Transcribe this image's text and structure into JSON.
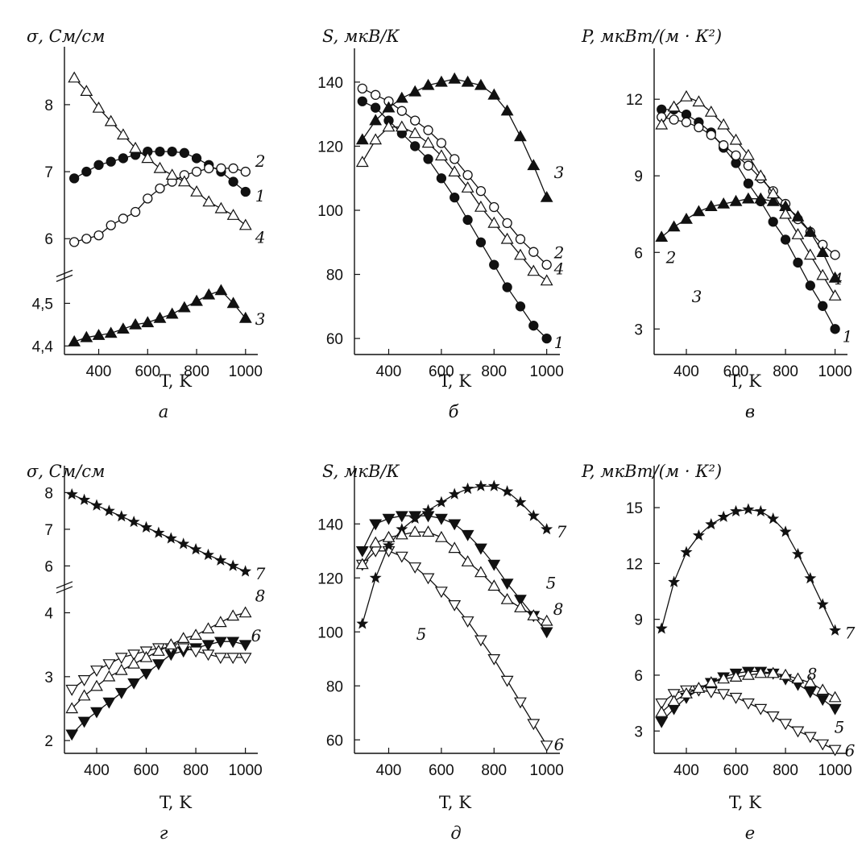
{
  "chart_data": [
    {
      "panel": "а",
      "type": "line",
      "ylabel": "σ, См/см",
      "xlabel": "T, K",
      "xticks": [
        400,
        600,
        800,
        1000
      ],
      "xlim": [
        260,
        1050
      ],
      "yticks": [
        4.4,
        4.5,
        6,
        7,
        8
      ],
      "ytick_labels": [
        "4,4",
        "4,5",
        "6",
        "7",
        "8"
      ],
      "axis_break": "between 4.5 and 6",
      "series": [
        {
          "name": "1",
          "marker": "filled-circle",
          "x": [
            300,
            350,
            400,
            450,
            500,
            550,
            600,
            650,
            700,
            750,
            800,
            850,
            900,
            950,
            1000
          ],
          "y": [
            6.9,
            7.0,
            7.1,
            7.15,
            7.2,
            7.25,
            7.3,
            7.3,
            7.3,
            7.28,
            7.2,
            7.1,
            7.0,
            6.85,
            6.7
          ]
        },
        {
          "name": "2",
          "marker": "open-circle",
          "x": [
            300,
            350,
            400,
            450,
            500,
            550,
            600,
            650,
            700,
            750,
            800,
            850,
            900,
            950,
            1000
          ],
          "y": [
            5.95,
            6.0,
            6.05,
            6.2,
            6.3,
            6.4,
            6.6,
            6.75,
            6.85,
            6.95,
            7.0,
            7.05,
            7.05,
            7.05,
            7.0
          ]
        },
        {
          "name": "3",
          "marker": "filled-triangle-up",
          "x": [
            300,
            350,
            400,
            450,
            500,
            550,
            600,
            650,
            700,
            750,
            800,
            850,
            900,
            950,
            1000
          ],
          "y": [
            4.41,
            4.42,
            4.425,
            4.43,
            4.44,
            4.45,
            4.455,
            4.465,
            4.475,
            4.49,
            4.505,
            4.52,
            4.53,
            4.5,
            4.465
          ]
        },
        {
          "name": "4",
          "marker": "open-triangle-up",
          "x": [
            300,
            350,
            400,
            450,
            500,
            550,
            600,
            650,
            700,
            750,
            800,
            850,
            900,
            950,
            1000
          ],
          "y": [
            8.4,
            8.2,
            7.95,
            7.75,
            7.55,
            7.35,
            7.2,
            7.05,
            6.95,
            6.85,
            6.7,
            6.55,
            6.45,
            6.35,
            6.2
          ]
        }
      ]
    },
    {
      "panel": "б",
      "type": "line",
      "ylabel": "S, мкВ/К",
      "xlabel": "T, K",
      "xticks": [
        400,
        600,
        800,
        1000
      ],
      "xlim": [
        270,
        1050
      ],
      "yticks": [
        60,
        80,
        100,
        120,
        140
      ],
      "ylim": [
        55,
        145
      ],
      "series": [
        {
          "name": "1",
          "marker": "filled-circle",
          "x": [
            300,
            350,
            400,
            450,
            500,
            550,
            600,
            650,
            700,
            750,
            800,
            850,
            900,
            950,
            1000
          ],
          "y": [
            134,
            132,
            128,
            124,
            120,
            116,
            110,
            104,
            97,
            90,
            83,
            76,
            70,
            64,
            60
          ]
        },
        {
          "name": "2",
          "marker": "open-circle",
          "x": [
            300,
            350,
            400,
            450,
            500,
            550,
            600,
            650,
            700,
            750,
            800,
            850,
            900,
            950,
            1000
          ],
          "y": [
            138,
            136,
            134,
            131,
            128,
            125,
            121,
            116,
            111,
            106,
            101,
            96,
            91,
            87,
            83
          ]
        },
        {
          "name": "3",
          "marker": "filled-triangle-up",
          "x": [
            300,
            350,
            400,
            450,
            500,
            550,
            600,
            650,
            700,
            750,
            800,
            850,
            900,
            950,
            1000
          ],
          "y": [
            122,
            128,
            132,
            135,
            137,
            139,
            140,
            141,
            140,
            139,
            136,
            131,
            123,
            114,
            104
          ]
        },
        {
          "name": "4",
          "marker": "open-triangle-up",
          "x": [
            300,
            350,
            400,
            450,
            500,
            550,
            600,
            650,
            700,
            750,
            800,
            850,
            900,
            950,
            1000
          ],
          "y": [
            115,
            122,
            126,
            126,
            124,
            121,
            117,
            112,
            107,
            101,
            96,
            91,
            86,
            81,
            78
          ]
        }
      ]
    },
    {
      "panel": "в",
      "type": "line",
      "ylabel": "P, мкВт/(м · К²)",
      "xlabel": "T, K",
      "xticks": [
        400,
        600,
        800,
        1000
      ],
      "xlim": [
        270,
        1050
      ],
      "yticks": [
        3,
        6,
        9,
        12
      ],
      "ylim": [
        2,
        13.3
      ],
      "series": [
        {
          "name": "1",
          "marker": "filled-circle",
          "x": [
            300,
            350,
            400,
            450,
            500,
            550,
            600,
            650,
            700,
            750,
            800,
            850,
            900,
            950,
            1000
          ],
          "y": [
            11.6,
            11.6,
            11.4,
            11.1,
            10.7,
            10.1,
            9.5,
            8.7,
            8.0,
            7.2,
            6.5,
            5.6,
            4.7,
            3.9,
            3.0
          ]
        },
        {
          "name": "2",
          "marker": "open-circle",
          "x": [
            300,
            350,
            400,
            450,
            500,
            550,
            600,
            650,
            700,
            750,
            800,
            850,
            900,
            950,
            1000
          ],
          "y": [
            11.3,
            11.2,
            11.1,
            10.9,
            10.6,
            10.2,
            9.8,
            9.4,
            8.9,
            8.4,
            7.9,
            7.3,
            6.8,
            6.3,
            5.9
          ]
        },
        {
          "name": "3",
          "marker": "filled-triangle-up",
          "x": [
            300,
            350,
            400,
            450,
            500,
            550,
            600,
            650,
            700,
            750,
            800,
            850,
            900,
            950,
            1000
          ],
          "y": [
            6.6,
            7.0,
            7.3,
            7.6,
            7.8,
            7.9,
            8.0,
            8.1,
            8.1,
            8.0,
            7.8,
            7.4,
            6.8,
            6.0,
            5.0
          ]
        },
        {
          "name": "4",
          "marker": "open-triangle-up",
          "x": [
            300,
            350,
            400,
            450,
            500,
            550,
            600,
            650,
            700,
            750,
            800,
            850,
            900,
            950,
            1000
          ],
          "y": [
            11.0,
            11.7,
            12.1,
            11.9,
            11.5,
            11.0,
            10.4,
            9.8,
            9.0,
            8.3,
            7.5,
            6.7,
            5.9,
            5.1,
            4.3
          ]
        }
      ]
    },
    {
      "panel": "г",
      "type": "line",
      "ylabel": "σ, См/см",
      "xlabel": "T, K",
      "xticks": [
        400,
        600,
        800,
        1000
      ],
      "xlim": [
        270,
        1050
      ],
      "yticks": [
        2,
        3,
        4,
        6,
        7,
        8
      ],
      "ytick_labels": [
        "2",
        "3",
        "4",
        "6",
        "7",
        "8"
      ],
      "axis_break": "between 4 and 6",
      "series": [
        {
          "name": "5",
          "marker": "filled-triangle-down",
          "x": [
            300,
            350,
            400,
            450,
            500,
            550,
            600,
            650,
            700,
            750,
            800,
            850,
            900,
            950,
            1000
          ],
          "y": [
            2.1,
            2.3,
            2.45,
            2.6,
            2.75,
            2.9,
            3.05,
            3.2,
            3.35,
            3.4,
            3.45,
            3.5,
            3.55,
            3.55,
            3.5
          ]
        },
        {
          "name": "6",
          "marker": "open-triangle-down",
          "x": [
            300,
            350,
            400,
            450,
            500,
            550,
            600,
            650,
            700,
            750,
            800,
            850,
            900,
            950,
            1000
          ],
          "y": [
            2.8,
            2.95,
            3.1,
            3.2,
            3.3,
            3.35,
            3.4,
            3.45,
            3.45,
            3.45,
            3.4,
            3.35,
            3.3,
            3.3,
            3.3
          ]
        },
        {
          "name": "7",
          "marker": "star",
          "x": [
            300,
            350,
            400,
            450,
            500,
            550,
            600,
            650,
            700,
            750,
            800,
            850,
            900,
            950,
            1000
          ],
          "y": [
            7.95,
            7.8,
            7.65,
            7.5,
            7.35,
            7.2,
            7.05,
            6.9,
            6.75,
            6.6,
            6.45,
            6.3,
            6.15,
            6.0,
            5.85
          ]
        },
        {
          "name": "8",
          "marker": "open-triangle-up",
          "x": [
            300,
            350,
            400,
            450,
            500,
            550,
            600,
            650,
            700,
            750,
            800,
            850,
            900,
            950,
            1000
          ],
          "y": [
            2.5,
            2.7,
            2.85,
            3.0,
            3.1,
            3.2,
            3.3,
            3.4,
            3.5,
            3.6,
            3.65,
            3.75,
            3.85,
            3.95,
            4.0
          ]
        }
      ]
    },
    {
      "panel": "д",
      "type": "line",
      "ylabel": "S, мкВ/К",
      "xlabel": "T, K",
      "xticks": [
        400,
        600,
        800,
        1000
      ],
      "xlim": [
        270,
        1050
      ],
      "yticks": [
        60,
        80,
        100,
        120,
        140
      ],
      "ylim": [
        55,
        155
      ],
      "series": [
        {
          "name": "5",
          "marker": "filled-triangle-down",
          "x": [
            300,
            350,
            400,
            450,
            500,
            550,
            600,
            650,
            700,
            750,
            800,
            850,
            900,
            950,
            1000
          ],
          "y": [
            130,
            140,
            142,
            143,
            143,
            143,
            142,
            140,
            136,
            131,
            125,
            118,
            112,
            106,
            100
          ]
        },
        {
          "name": "6",
          "marker": "open-triangle-down",
          "x": [
            300,
            350,
            400,
            450,
            500,
            550,
            600,
            650,
            700,
            750,
            800,
            850,
            900,
            950,
            1000
          ],
          "y": [
            125,
            130,
            130,
            128,
            124,
            120,
            115,
            110,
            104,
            97,
            90,
            82,
            74,
            66,
            58
          ]
        },
        {
          "name": "7",
          "marker": "star",
          "x": [
            300,
            350,
            400,
            450,
            500,
            550,
            600,
            650,
            700,
            750,
            800,
            850,
            900,
            950,
            1000
          ],
          "y": [
            103,
            120,
            132,
            138,
            142,
            145,
            148,
            151,
            153,
            154,
            154,
            152,
            148,
            143,
            138
          ]
        },
        {
          "name": "8",
          "marker": "open-triangle-up",
          "x": [
            300,
            350,
            400,
            450,
            500,
            550,
            600,
            650,
            700,
            750,
            800,
            850,
            900,
            950,
            1000
          ],
          "y": [
            125,
            133,
            135,
            136,
            137,
            137,
            135,
            131,
            126,
            122,
            117,
            112,
            109,
            106,
            104
          ]
        }
      ]
    },
    {
      "panel": "е",
      "type": "line",
      "ylabel": "P, мкВт/(м · К²)",
      "xlabel": "T, K",
      "xticks": [
        400,
        600,
        800,
        1000
      ],
      "xlim": [
        270,
        1050
      ],
      "yticks": [
        3,
        6,
        9,
        12,
        15
      ],
      "ylim": [
        1.8,
        16.3
      ],
      "series": [
        {
          "name": "5",
          "marker": "filled-triangle-down",
          "x": [
            300,
            350,
            400,
            450,
            500,
            550,
            600,
            650,
            700,
            750,
            800,
            850,
            900,
            950,
            1000
          ],
          "y": [
            3.5,
            4.2,
            4.8,
            5.2,
            5.6,
            5.9,
            6.1,
            6.2,
            6.2,
            6.1,
            5.8,
            5.5,
            5.1,
            4.7,
            4.2
          ]
        },
        {
          "name": "6",
          "marker": "open-triangle-down",
          "x": [
            300,
            350,
            400,
            450,
            500,
            550,
            600,
            650,
            700,
            750,
            800,
            850,
            900,
            950,
            1000
          ],
          "y": [
            4.5,
            5.0,
            5.2,
            5.2,
            5.1,
            5.0,
            4.8,
            4.5,
            4.2,
            3.8,
            3.4,
            3.0,
            2.7,
            2.3,
            2.0
          ]
        },
        {
          "name": "7",
          "marker": "star",
          "x": [
            300,
            350,
            400,
            450,
            500,
            550,
            600,
            650,
            700,
            750,
            800,
            850,
            900,
            950,
            1000
          ],
          "y": [
            8.5,
            11.0,
            12.6,
            13.5,
            14.1,
            14.5,
            14.8,
            14.9,
            14.8,
            14.4,
            13.7,
            12.5,
            11.2,
            9.8,
            8.4
          ]
        },
        {
          "name": "8",
          "marker": "open-triangle-up",
          "x": [
            300,
            350,
            400,
            450,
            500,
            550,
            600,
            650,
            700,
            750,
            800,
            850,
            900,
            950,
            1000
          ],
          "y": [
            4.0,
            4.6,
            5.0,
            5.3,
            5.6,
            5.8,
            5.9,
            6.0,
            6.1,
            6.1,
            6.0,
            5.8,
            5.6,
            5.2,
            4.8
          ]
        }
      ]
    }
  ]
}
